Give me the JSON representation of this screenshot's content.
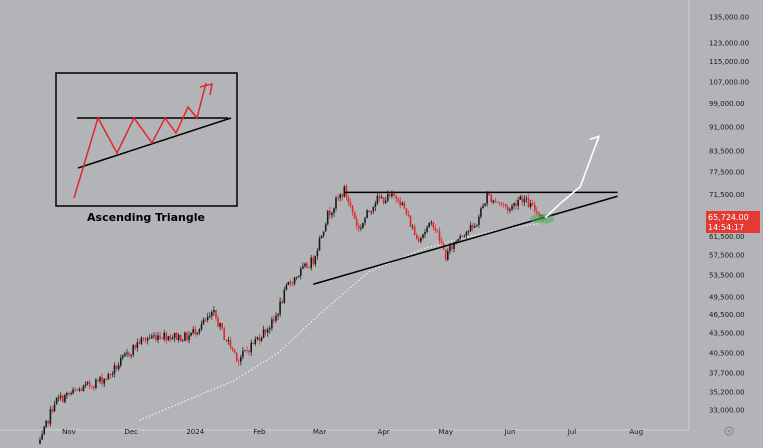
{
  "colors": {
    "background": "#b3b4b7",
    "up": "#1a1a1a",
    "down": "#e0292c",
    "price_badge": "#e53935",
    "trendline": "#000000",
    "moving_average": "#f2f2f2",
    "projection": "#ffffff",
    "highlight": "#4caf50"
  },
  "inset": {
    "caption": "Ascending Triangle"
  },
  "price_badge": {
    "price": "65,724.00",
    "countdown": "14:54:17"
  },
  "chart_data": {
    "type": "candlestick",
    "title": "",
    "xlabel": "",
    "ylabel": "",
    "y_scale": "log",
    "ylim": [
      31500,
      140000
    ],
    "x_ticks": [
      {
        "label": "Nov",
        "date": "2023-11-01"
      },
      {
        "label": "Dec",
        "date": "2023-12-01"
      },
      {
        "label": "2024",
        "date": "2024-01-01"
      },
      {
        "label": "Feb",
        "date": "2024-02-01"
      },
      {
        "label": "Mar",
        "date": "2024-03-01"
      },
      {
        "label": "Apr",
        "date": "2024-04-01"
      },
      {
        "label": "May",
        "date": "2024-05-01"
      },
      {
        "label": "Jun",
        "date": "2024-06-01"
      },
      {
        "label": "Jul",
        "date": "2024-07-01"
      },
      {
        "label": "Aug",
        "date": "2024-08-01"
      }
    ],
    "y_ticks": [
      "135,000.00",
      "123,000.00",
      "115,000.00",
      "107,000.00",
      "99,000.00",
      "91,000.00",
      "83,500.00",
      "77,500.00",
      "71,500.00",
      "61,500.00",
      "57,500.00",
      "53,500.00",
      "49,500.00",
      "46,500.00",
      "43,500.00",
      "40,500.00",
      "37,700.00",
      "35,200.00",
      "33,000.00"
    ],
    "path_points": [
      {
        "date": "2023-10-17",
        "close": 28500
      },
      {
        "date": "2023-10-25",
        "close": 34000
      },
      {
        "date": "2023-11-08",
        "close": 35700
      },
      {
        "date": "2023-11-20",
        "close": 37200
      },
      {
        "date": "2023-12-05",
        "close": 42200
      },
      {
        "date": "2023-12-14",
        "close": 43200
      },
      {
        "date": "2023-12-28",
        "close": 42800
      },
      {
        "date": "2024-01-10",
        "close": 46500
      },
      {
        "date": "2024-01-15",
        "close": 43000
      },
      {
        "date": "2024-01-22",
        "close": 39500
      },
      {
        "date": "2024-02-01",
        "close": 43000
      },
      {
        "date": "2024-02-08",
        "close": 45300
      },
      {
        "date": "2024-02-15",
        "close": 51800
      },
      {
        "date": "2024-02-27",
        "close": 56500
      },
      {
        "date": "2024-03-05",
        "close": 66500
      },
      {
        "date": "2024-03-13",
        "close": 72500
      },
      {
        "date": "2024-03-20",
        "close": 63000
      },
      {
        "date": "2024-03-28",
        "close": 70000
      },
      {
        "date": "2024-04-08",
        "close": 71000
      },
      {
        "date": "2024-04-17",
        "close": 61000
      },
      {
        "date": "2024-04-25",
        "close": 64500
      },
      {
        "date": "2024-05-01",
        "close": 57200
      },
      {
        "date": "2024-05-08",
        "close": 62000
      },
      {
        "date": "2024-05-15",
        "close": 63500
      },
      {
        "date": "2024-05-21",
        "close": 71200
      },
      {
        "date": "2024-06-01",
        "close": 67700
      },
      {
        "date": "2024-06-06",
        "close": 71000
      },
      {
        "date": "2024-06-12",
        "close": 68000
      },
      {
        "date": "2024-06-18",
        "close": 65724
      }
    ],
    "moving_average": [
      {
        "date": "2023-12-05",
        "value": 31800
      },
      {
        "date": "2024-01-01",
        "value": 34600
      },
      {
        "date": "2024-01-20",
        "value": 36700
      },
      {
        "date": "2024-02-10",
        "value": 40500
      },
      {
        "date": "2024-03-01",
        "value": 46500
      },
      {
        "date": "2024-03-25",
        "value": 54200
      },
      {
        "date": "2024-04-20",
        "value": 58800
      },
      {
        "date": "2024-05-10",
        "value": 61200
      },
      {
        "date": "2024-05-25",
        "value": 62800
      },
      {
        "date": "2024-06-18",
        "value": 64600
      }
    ],
    "annotations": {
      "resistance": {
        "price": 72000,
        "from": "2024-03-13",
        "to": "2024-07-23"
      },
      "support": {
        "from": {
          "date": "2024-02-27",
          "price": 51800
        },
        "to": {
          "date": "2024-07-23",
          "price": 71000
        }
      },
      "projection": [
        {
          "date": "2024-06-18",
          "price": 65724
        },
        {
          "date": "2024-06-26",
          "price": 69500
        },
        {
          "date": "2024-07-05",
          "price": 73500
        },
        {
          "date": "2024-07-14",
          "price": 88000
        }
      ]
    }
  }
}
